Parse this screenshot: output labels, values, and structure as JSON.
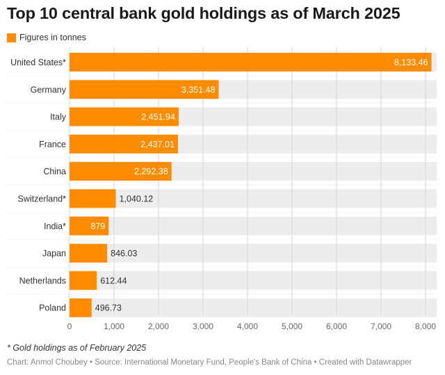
{
  "title": "Top 10 central bank gold holdings as of March 2025",
  "legend": {
    "label": "Figures in tonnes",
    "color": "#ff8c00"
  },
  "note": "* Gold holdings as of February 2025",
  "source": "Chart: Anmol Choubey • Source: International Monetary Fund, People's Bank of China • Created with Datawrapper",
  "chart_data": {
    "type": "bar",
    "orientation": "horizontal",
    "categories": [
      "United States*",
      "Germany",
      "Italy",
      "France",
      "China",
      "Switzerland*",
      "India*",
      "Japan",
      "Netherlands",
      "Poland"
    ],
    "series": [
      {
        "values": [
          8133.46,
          3351.48,
          2451.94,
          2437.01,
          2292.38,
          1040.12,
          879,
          846.03,
          612.44,
          496.73
        ],
        "value_labels": [
          "8,133.46",
          "3,351.48",
          "2,451.94",
          "2,437.01",
          "2,292.38",
          "1,040.12",
          "879",
          "846.03",
          "612.44",
          "496.73"
        ]
      }
    ],
    "xlim": [
      0,
      8250
    ],
    "xticks": [
      0,
      1000,
      2000,
      3000,
      4000,
      5000,
      6000,
      7000,
      8000
    ],
    "xtick_labels": [
      "0",
      "1,000",
      "2,000",
      "3,000",
      "4,000",
      "5,000",
      "6,000",
      "7,000",
      "8,000"
    ],
    "grid": true,
    "bar_color": "#ff8c00",
    "track_color": "#ededed"
  }
}
